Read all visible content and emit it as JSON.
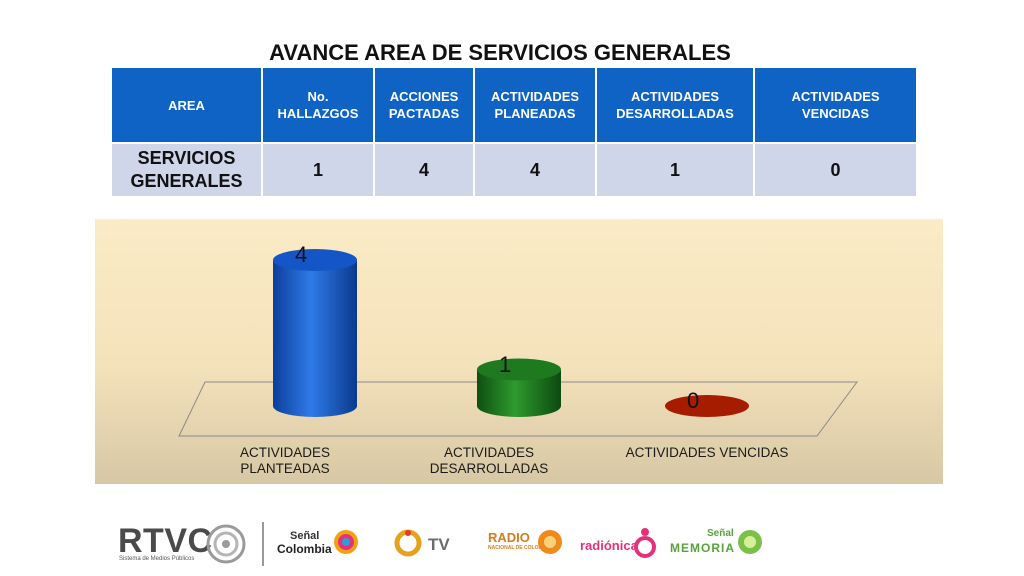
{
  "title": "AVANCE AREA DE SERVICIOS GENERALES",
  "table": {
    "headers": [
      "AREA",
      "No.\nHALLAZGOS",
      "ACCIONES\nPACTADAS",
      "ACTIVIDADES\nPLANEADAS",
      "ACTIVIDADES\nDESARROLLADAS",
      "ACTIVIDADES\nVENCIDAS"
    ],
    "row": [
      "SERVICIOS GENERALES",
      "1",
      "4",
      "4",
      "1",
      "0"
    ]
  },
  "chart_data": {
    "type": "bar",
    "categories": [
      "ACTIVIDADES PLANTEADAS",
      "ACTIVIDADES DESARROLLADAS",
      "ACTIVIDADES VENCIDAS"
    ],
    "category_display": [
      "ACTIVIDADES\nPLANTEADAS",
      "ACTIVIDADES\nDESARROLLADAS",
      "ACTIVIDADES VENCIDAS"
    ],
    "values": [
      4,
      1,
      0
    ],
    "colors": [
      "#1456c8",
      "#1f7a1f",
      "#a61c00"
    ],
    "ylim": [
      0,
      4
    ],
    "style": "3d-cylinder",
    "data_labels": true,
    "legend": "none"
  },
  "footer": {
    "rtvc": "RTVC",
    "rtvc_sub": "Sistema de Medios Públicos",
    "senal": "Señal",
    "colombia": "Colombia",
    "tv": "TV",
    "radio": "RADIO",
    "radio_sub": "NACIONAL DE COLOMBIA",
    "radionica": "radiónica",
    "senal2": "Señal",
    "memoria": "MEMORIA"
  }
}
